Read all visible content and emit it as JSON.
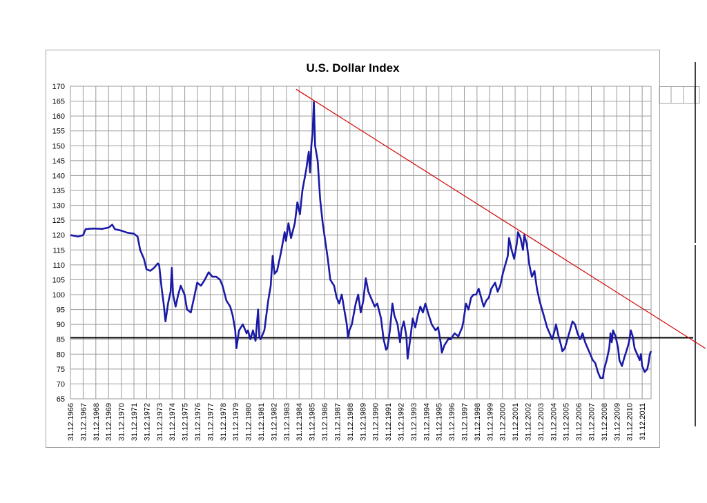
{
  "chart_data": {
    "type": "line",
    "title": "U.S. Dollar Index",
    "xlabel": "",
    "ylabel": "",
    "ylim": [
      65,
      170
    ],
    "y_ticks": [
      65,
      70,
      75,
      80,
      85,
      90,
      95,
      100,
      105,
      110,
      115,
      120,
      125,
      130,
      135,
      140,
      145,
      150,
      155,
      160,
      165,
      170
    ],
    "x_range": [
      1966,
      2011.8
    ],
    "x_tick_labels": [
      "31.12.1966",
      "31.12.1967",
      "31.12.1968",
      "31.12.1969",
      "31.12.1970",
      "31.12.1971",
      "31.12.1972",
      "31.12.1973",
      "31.12.1974",
      "31.12.1975",
      "31.12.1976",
      "31.12.1977",
      "31.12.1978",
      "31.12.1979",
      "31.12.1980",
      "31.12.1981",
      "31.12.1982",
      "31.12.1983",
      "31.12.1984",
      "31.12.1985",
      "31.12.1986",
      "31.12.1987",
      "31.12.1988",
      "31.12.1989",
      "31.12.1990",
      "31.12.1991",
      "31.12.1992",
      "31.12.1993",
      "31.12.1994",
      "31.12.1995",
      "31.12.1996",
      "31.12.1997",
      "31.12.1998",
      "31.12.1999",
      "31.12.2000",
      "31.12.2001",
      "31.12.2002",
      "31.12.2003",
      "31.12.2004",
      "31.12.2005",
      "31.12.2006",
      "31.12.2007",
      "31.12.2008",
      "31.12.2009",
      "31.12.2010",
      "31.12.2011"
    ],
    "grid": true,
    "legend": "none",
    "series": [
      {
        "color": "#1a1aa6",
        "points": [
          [
            1966.0,
            120
          ],
          [
            1966.6,
            119.5
          ],
          [
            1967.0,
            120
          ],
          [
            1967.2,
            122
          ],
          [
            1967.8,
            122.2
          ],
          [
            1968.5,
            122.1
          ],
          [
            1969.0,
            122.5
          ],
          [
            1969.3,
            123.5
          ],
          [
            1969.5,
            122
          ],
          [
            1970.0,
            121.5
          ],
          [
            1970.5,
            120.8
          ],
          [
            1971.0,
            120.5
          ],
          [
            1971.3,
            119.5
          ],
          [
            1971.5,
            115
          ],
          [
            1971.8,
            112
          ],
          [
            1972.0,
            108.5
          ],
          [
            1972.3,
            108
          ],
          [
            1972.6,
            109
          ],
          [
            1972.9,
            110.5
          ],
          [
            1973.0,
            110
          ],
          [
            1973.2,
            102
          ],
          [
            1973.35,
            97
          ],
          [
            1973.5,
            91
          ],
          [
            1973.7,
            97
          ],
          [
            1973.9,
            101
          ],
          [
            1974.0,
            109
          ],
          [
            1974.1,
            100
          ],
          [
            1974.3,
            96
          ],
          [
            1974.5,
            100
          ],
          [
            1974.7,
            103
          ],
          [
            1975.0,
            100
          ],
          [
            1975.2,
            95
          ],
          [
            1975.5,
            94
          ],
          [
            1975.8,
            100
          ],
          [
            1976.0,
            104
          ],
          [
            1976.3,
            103
          ],
          [
            1976.6,
            105
          ],
          [
            1976.9,
            107.5
          ],
          [
            1977.2,
            106
          ],
          [
            1977.5,
            106
          ],
          [
            1977.8,
            105
          ],
          [
            1978.0,
            103
          ],
          [
            1978.3,
            98
          ],
          [
            1978.6,
            96
          ],
          [
            1978.8,
            93
          ],
          [
            1979.0,
            88
          ],
          [
            1979.1,
            82
          ],
          [
            1979.3,
            88
          ],
          [
            1979.6,
            90
          ],
          [
            1979.9,
            87
          ],
          [
            1980.0,
            88
          ],
          [
            1980.2,
            85
          ],
          [
            1980.4,
            88
          ],
          [
            1980.6,
            84.5
          ],
          [
            1980.8,
            95
          ],
          [
            1980.9,
            86
          ],
          [
            1981.0,
            85
          ],
          [
            1981.3,
            88
          ],
          [
            1981.6,
            98
          ],
          [
            1981.8,
            103
          ],
          [
            1981.95,
            113
          ],
          [
            1982.1,
            107
          ],
          [
            1982.3,
            108
          ],
          [
            1982.6,
            114
          ],
          [
            1982.9,
            121
          ],
          [
            1983.0,
            118
          ],
          [
            1983.2,
            124
          ],
          [
            1983.4,
            119
          ],
          [
            1983.7,
            124
          ],
          [
            1983.9,
            131
          ],
          [
            1984.1,
            127
          ],
          [
            1984.3,
            135
          ],
          [
            1984.6,
            142
          ],
          [
            1984.8,
            148
          ],
          [
            1984.9,
            141
          ],
          [
            1985.0,
            150
          ],
          [
            1985.1,
            154
          ],
          [
            1985.2,
            164.7
          ],
          [
            1985.3,
            150
          ],
          [
            1985.5,
            145
          ],
          [
            1985.7,
            132
          ],
          [
            1985.9,
            124
          ],
          [
            1986.1,
            118
          ],
          [
            1986.3,
            112
          ],
          [
            1986.5,
            105
          ],
          [
            1986.8,
            103
          ],
          [
            1987.0,
            99
          ],
          [
            1987.2,
            97
          ],
          [
            1987.4,
            100
          ],
          [
            1987.6,
            95
          ],
          [
            1987.8,
            90
          ],
          [
            1987.9,
            85.5
          ],
          [
            1988.0,
            88
          ],
          [
            1988.2,
            90
          ],
          [
            1988.5,
            97
          ],
          [
            1988.7,
            100
          ],
          [
            1988.9,
            94
          ],
          [
            1989.1,
            98
          ],
          [
            1989.3,
            105.5
          ],
          [
            1989.5,
            101
          ],
          [
            1989.8,
            98
          ],
          [
            1990.0,
            96
          ],
          [
            1990.2,
            97
          ],
          [
            1990.5,
            92
          ],
          [
            1990.7,
            85
          ],
          [
            1990.9,
            81.5
          ],
          [
            1991.0,
            82
          ],
          [
            1991.2,
            88
          ],
          [
            1991.4,
            97
          ],
          [
            1991.55,
            93
          ],
          [
            1991.8,
            90
          ],
          [
            1992.0,
            84
          ],
          [
            1992.1,
            88
          ],
          [
            1992.3,
            91
          ],
          [
            1992.5,
            86
          ],
          [
            1992.6,
            78.5
          ],
          [
            1992.8,
            85
          ],
          [
            1993.0,
            92
          ],
          [
            1993.2,
            89
          ],
          [
            1993.4,
            93
          ],
          [
            1993.6,
            96
          ],
          [
            1993.8,
            94
          ],
          [
            1994.0,
            97
          ],
          [
            1994.2,
            94
          ],
          [
            1994.5,
            90
          ],
          [
            1994.8,
            88
          ],
          [
            1995.0,
            89
          ],
          [
            1995.2,
            84
          ],
          [
            1995.3,
            80.5
          ],
          [
            1995.5,
            83
          ],
          [
            1995.8,
            85
          ],
          [
            1996.0,
            85
          ],
          [
            1996.3,
            87
          ],
          [
            1996.6,
            86
          ],
          [
            1996.9,
            89
          ],
          [
            1997.0,
            91
          ],
          [
            1997.2,
            97
          ],
          [
            1997.4,
            95
          ],
          [
            1997.6,
            99
          ],
          [
            1997.8,
            100
          ],
          [
            1998.0,
            100
          ],
          [
            1998.2,
            102
          ],
          [
            1998.4,
            99
          ],
          [
            1998.6,
            96
          ],
          [
            1998.8,
            98
          ],
          [
            1999.0,
            99
          ],
          [
            1999.2,
            102
          ],
          [
            1999.5,
            104
          ],
          [
            1999.7,
            101
          ],
          [
            1999.9,
            103
          ],
          [
            2000.1,
            107
          ],
          [
            2000.3,
            110
          ],
          [
            2000.5,
            113
          ],
          [
            2000.6,
            119
          ],
          [
            2000.8,
            115
          ],
          [
            2001.0,
            112
          ],
          [
            2001.2,
            117
          ],
          [
            2001.3,
            121
          ],
          [
            2001.5,
            119
          ],
          [
            2001.7,
            115
          ],
          [
            2001.8,
            120
          ],
          [
            2002.0,
            117
          ],
          [
            2002.2,
            110
          ],
          [
            2002.4,
            106
          ],
          [
            2002.6,
            108
          ],
          [
            2002.8,
            102
          ],
          [
            2003.0,
            98
          ],
          [
            2003.2,
            95
          ],
          [
            2003.4,
            92
          ],
          [
            2003.6,
            89
          ],
          [
            2003.8,
            87
          ],
          [
            2004.0,
            85
          ],
          [
            2004.2,
            88
          ],
          [
            2004.3,
            90
          ],
          [
            2004.5,
            86
          ],
          [
            2004.7,
            83
          ],
          [
            2004.8,
            81
          ],
          [
            2005.0,
            82
          ],
          [
            2005.2,
            85
          ],
          [
            2005.4,
            88
          ],
          [
            2005.6,
            91
          ],
          [
            2005.8,
            90
          ],
          [
            2006.0,
            87
          ],
          [
            2006.2,
            85
          ],
          [
            2006.4,
            87
          ],
          [
            2006.6,
            84
          ],
          [
            2006.8,
            82
          ],
          [
            2007.0,
            80
          ],
          [
            2007.2,
            78
          ],
          [
            2007.4,
            77
          ],
          [
            2007.6,
            74
          ],
          [
            2007.8,
            72
          ],
          [
            2008.0,
            72
          ],
          [
            2008.1,
            75
          ],
          [
            2008.3,
            78
          ],
          [
            2008.5,
            82
          ],
          [
            2008.6,
            87
          ],
          [
            2008.7,
            84
          ],
          [
            2008.8,
            88
          ],
          [
            2009.0,
            86
          ],
          [
            2009.2,
            82
          ],
          [
            2009.3,
            78
          ],
          [
            2009.5,
            76
          ],
          [
            2009.7,
            79
          ],
          [
            2009.85,
            81
          ],
          [
            2010.0,
            83
          ],
          [
            2010.1,
            85
          ],
          [
            2010.2,
            88
          ],
          [
            2010.35,
            86
          ],
          [
            2010.5,
            82
          ],
          [
            2010.7,
            80
          ],
          [
            2010.9,
            78
          ],
          [
            2011.0,
            80
          ],
          [
            2011.1,
            76
          ],
          [
            2011.3,
            74
          ],
          [
            2011.5,
            75
          ],
          [
            2011.6,
            77
          ],
          [
            2011.7,
            80
          ],
          [
            2011.8,
            81
          ]
        ]
      }
    ],
    "annotations": {
      "horizontal_line": {
        "y": 85.5,
        "color": "#000000"
      },
      "trend_line": {
        "from": [
          1983.8,
          169
        ],
        "to": [
          2011.8,
          93.5
        ],
        "color": "#d40000"
      }
    }
  }
}
